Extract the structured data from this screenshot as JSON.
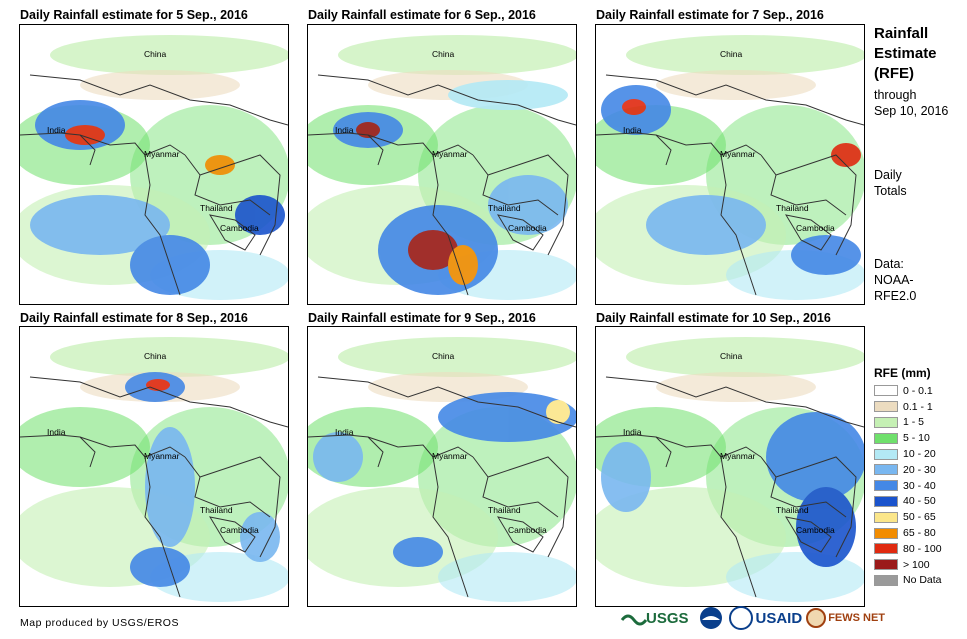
{
  "panels": [
    {
      "title": "Daily Rainfall estimate for 5 Sep., 2016"
    },
    {
      "title": "Daily Rainfall estimate for 6 Sep., 2016"
    },
    {
      "title": "Daily Rainfall estimate for 7 Sep., 2016"
    },
    {
      "title": "Daily Rainfall estimate for 8 Sep., 2016"
    },
    {
      "title": "Daily Rainfall estimate for 9 Sep., 2016"
    },
    {
      "title": "Daily Rainfall estimate for 10 Sep., 2016"
    }
  ],
  "countries": {
    "china": "China",
    "india": "India",
    "myanmar": "Myanmar",
    "thailand": "Thailand",
    "cambodia": "Cambodia"
  },
  "side": {
    "title_line1": "Rainfall",
    "title_line2": "Estimate",
    "title_line3": "(RFE)",
    "through": "through",
    "date": "Sep 10, 2016",
    "daily": "Daily",
    "totals": "Totals",
    "data_label": "Data:",
    "source1": "NOAA-",
    "source2": "RFE2.0"
  },
  "legend": {
    "title": "RFE (mm)",
    "items": [
      {
        "label": "0 - 0.1",
        "color": "#ffffff"
      },
      {
        "label": "0.1 - 1",
        "color": "#ecdcc0"
      },
      {
        "label": "1 - 5",
        "color": "#c5f0b4"
      },
      {
        "label": "5 - 10",
        "color": "#6fe06c"
      },
      {
        "label": "10 - 20",
        "color": "#b3e9f5"
      },
      {
        "label": "20 - 30",
        "color": "#79b7f0"
      },
      {
        "label": "30 - 40",
        "color": "#4488e6"
      },
      {
        "label": "40 - 50",
        "color": "#1a53cc"
      },
      {
        "label": "50 - 65",
        "color": "#fbe68a"
      },
      {
        "label": "65 - 80",
        "color": "#f28c00"
      },
      {
        "label": "80 - 100",
        "color": "#e02a10"
      },
      {
        "label": "> 100",
        "color": "#9b1a1a"
      },
      {
        "label": "No Data",
        "color": "#9a9a9a"
      }
    ]
  },
  "credit": "Map produced by USGS/EROS",
  "logos": {
    "usgs": "USGS",
    "usaid": "USAID",
    "fewsnet": "FEWS NET"
  }
}
